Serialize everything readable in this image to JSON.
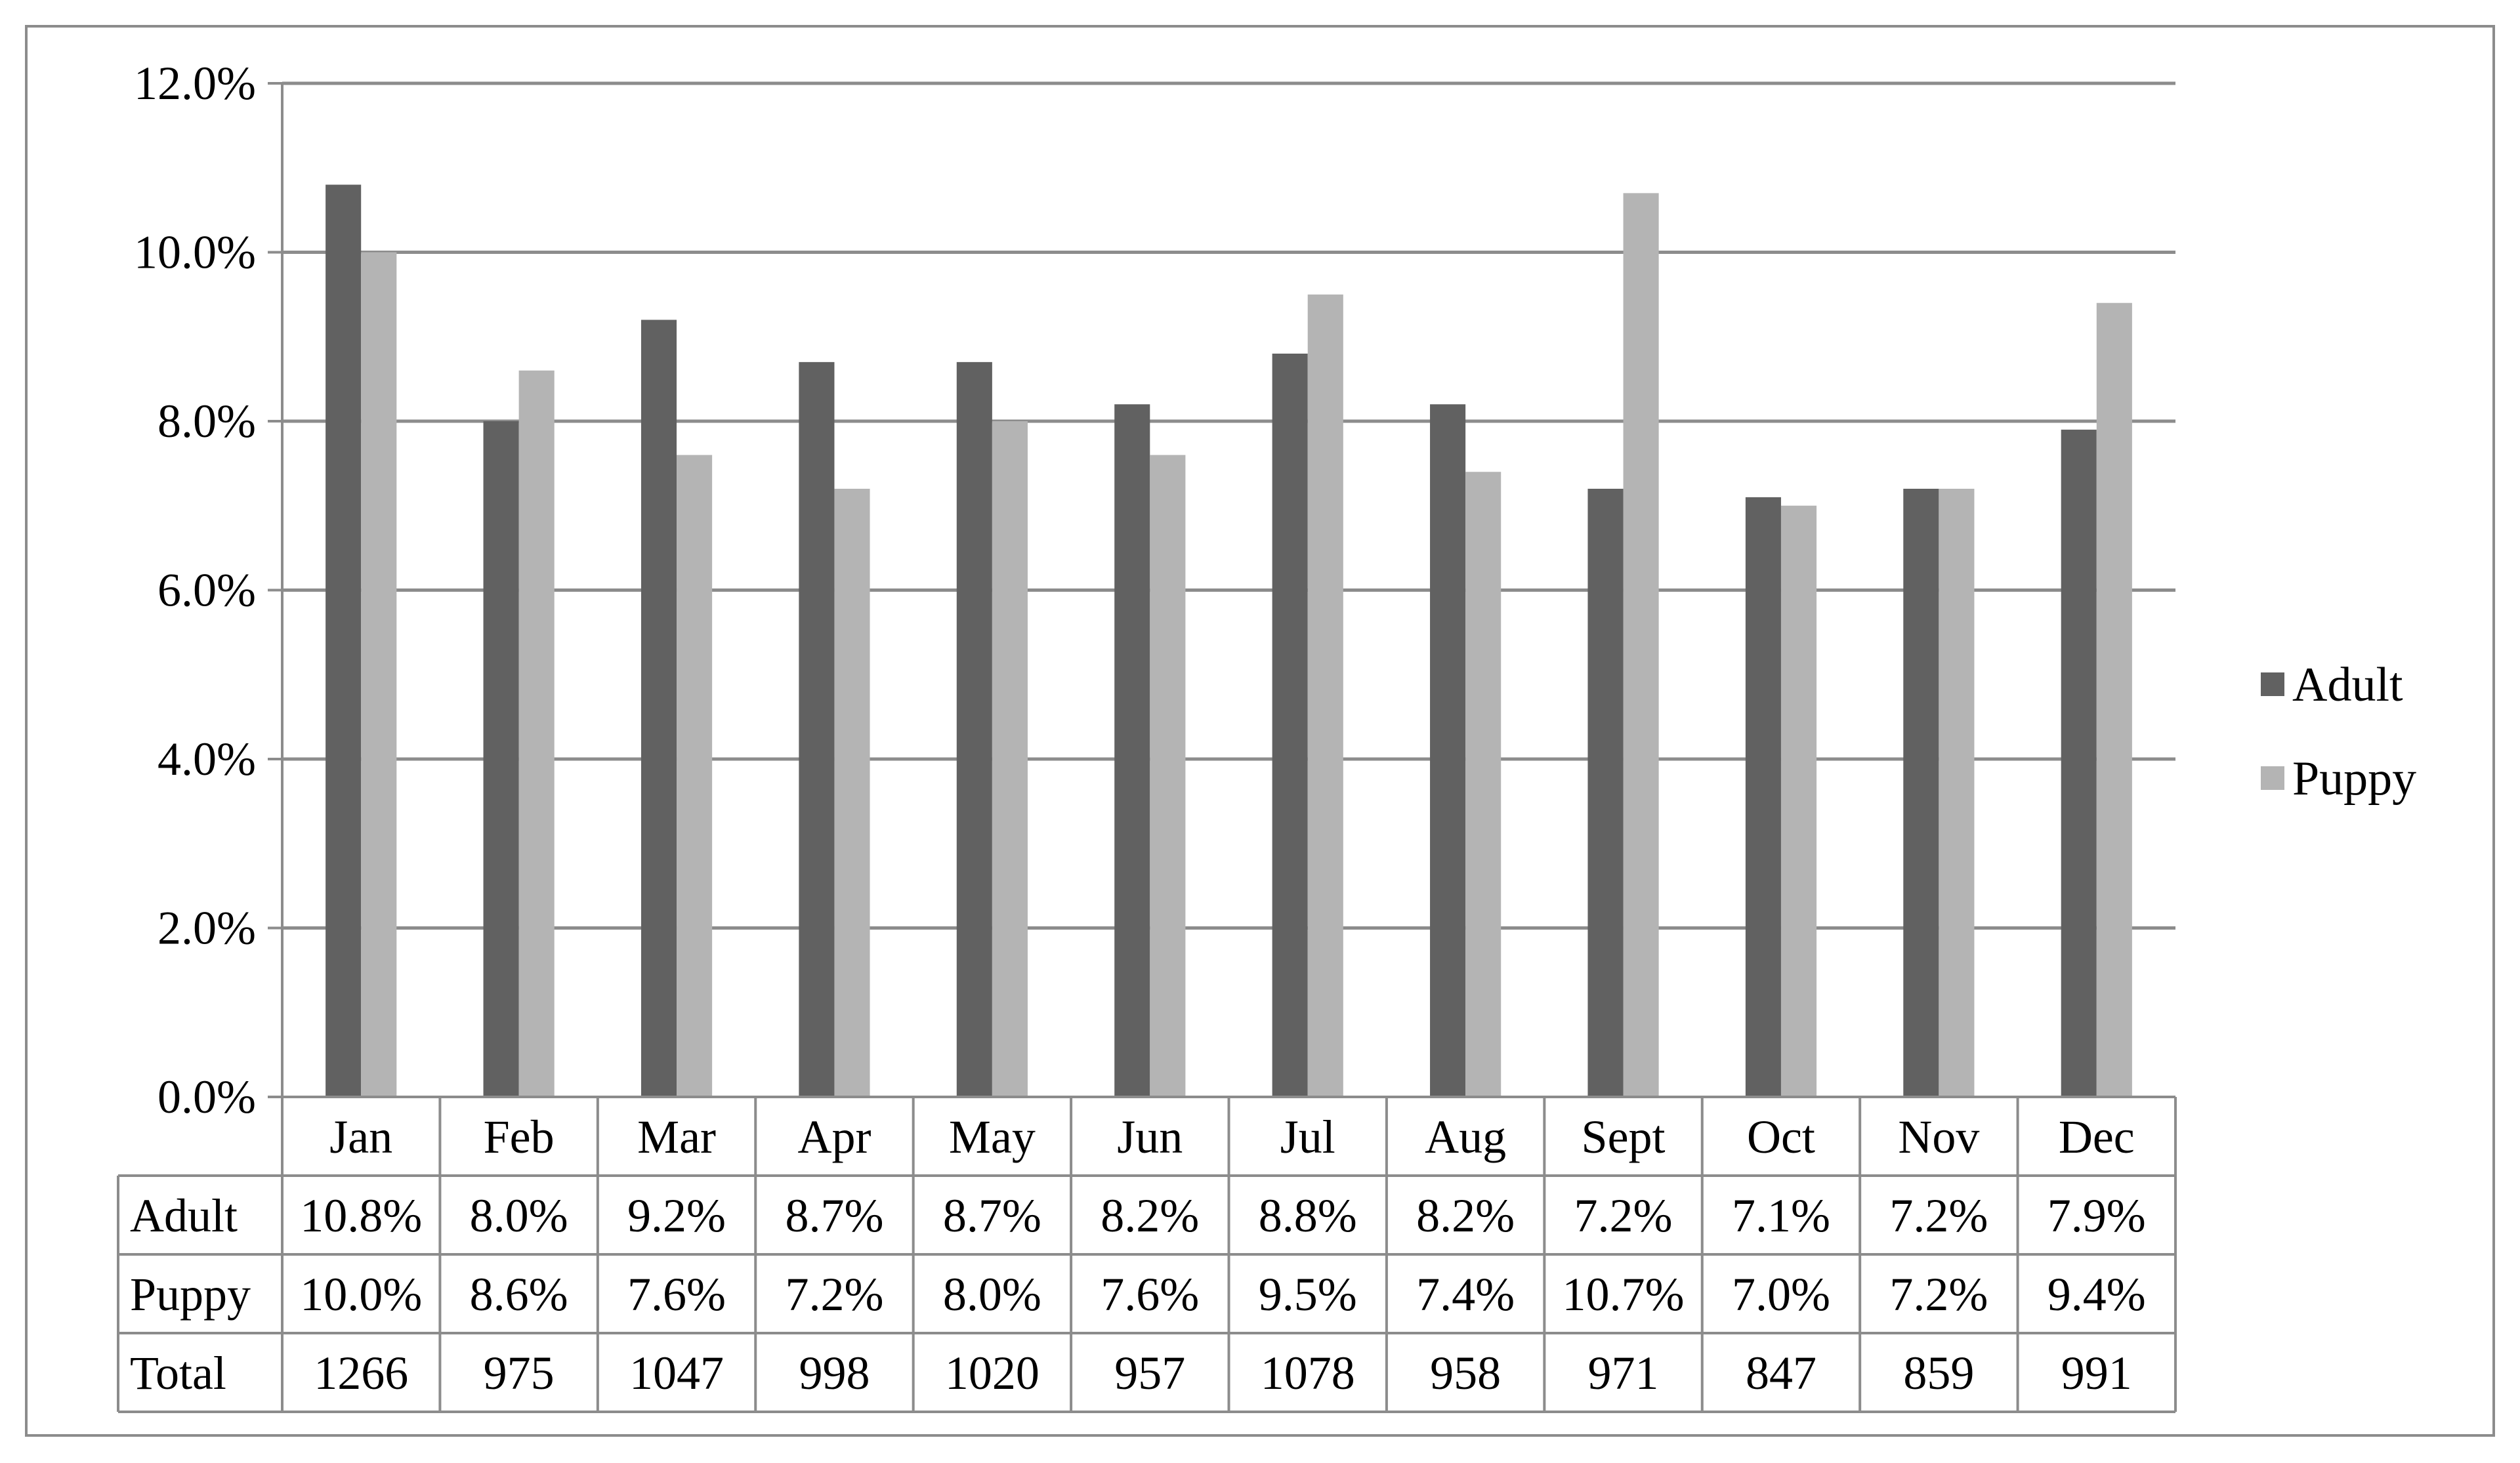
{
  "chart_data": {
    "type": "bar",
    "categories": [
      "Jan",
      "Feb",
      "Mar",
      "Apr",
      "May",
      "Jun",
      "Jul",
      "Aug",
      "Sept",
      "Oct",
      "Nov",
      "Dec"
    ],
    "series": [
      {
        "name": "Adult",
        "color": "#616161",
        "values": [
          10.8,
          8.0,
          9.2,
          8.7,
          8.7,
          8.2,
          8.8,
          8.2,
          7.2,
          7.1,
          7.2,
          7.9
        ],
        "labels": [
          "10.8%",
          "8.0%",
          "9.2%",
          "8.7%",
          "8.7%",
          "8.2%",
          "8.8%",
          "8.2%",
          "7.2%",
          "7.1%",
          "7.2%",
          "7.9%"
        ]
      },
      {
        "name": "Puppy",
        "color": "#b4b4b4",
        "values": [
          10.0,
          8.6,
          7.6,
          7.2,
          8.0,
          7.6,
          9.5,
          7.4,
          10.7,
          7.0,
          7.2,
          9.4
        ],
        "labels": [
          "10.0%",
          "8.6%",
          "7.6%",
          "7.2%",
          "8.0%",
          "7.6%",
          "9.5%",
          "7.4%",
          "10.7%",
          "7.0%",
          "7.2%",
          "9.4%"
        ]
      }
    ],
    "data_table": {
      "rows": [
        {
          "header": "Adult",
          "series": 0
        },
        {
          "header": "Puppy",
          "series": 1
        },
        {
          "header": "Total",
          "values": [
            "1266",
            "975",
            "1047",
            "998",
            "1020",
            "957",
            "1078",
            "958",
            "971",
            "847",
            "859",
            "991"
          ]
        }
      ]
    },
    "y_ticks": [
      "0.0%",
      "2.0%",
      "4.0%",
      "6.0%",
      "8.0%",
      "10.0%",
      "12.0%"
    ],
    "ylim": [
      0,
      12
    ],
    "grid": true,
    "legend_position": "right"
  }
}
